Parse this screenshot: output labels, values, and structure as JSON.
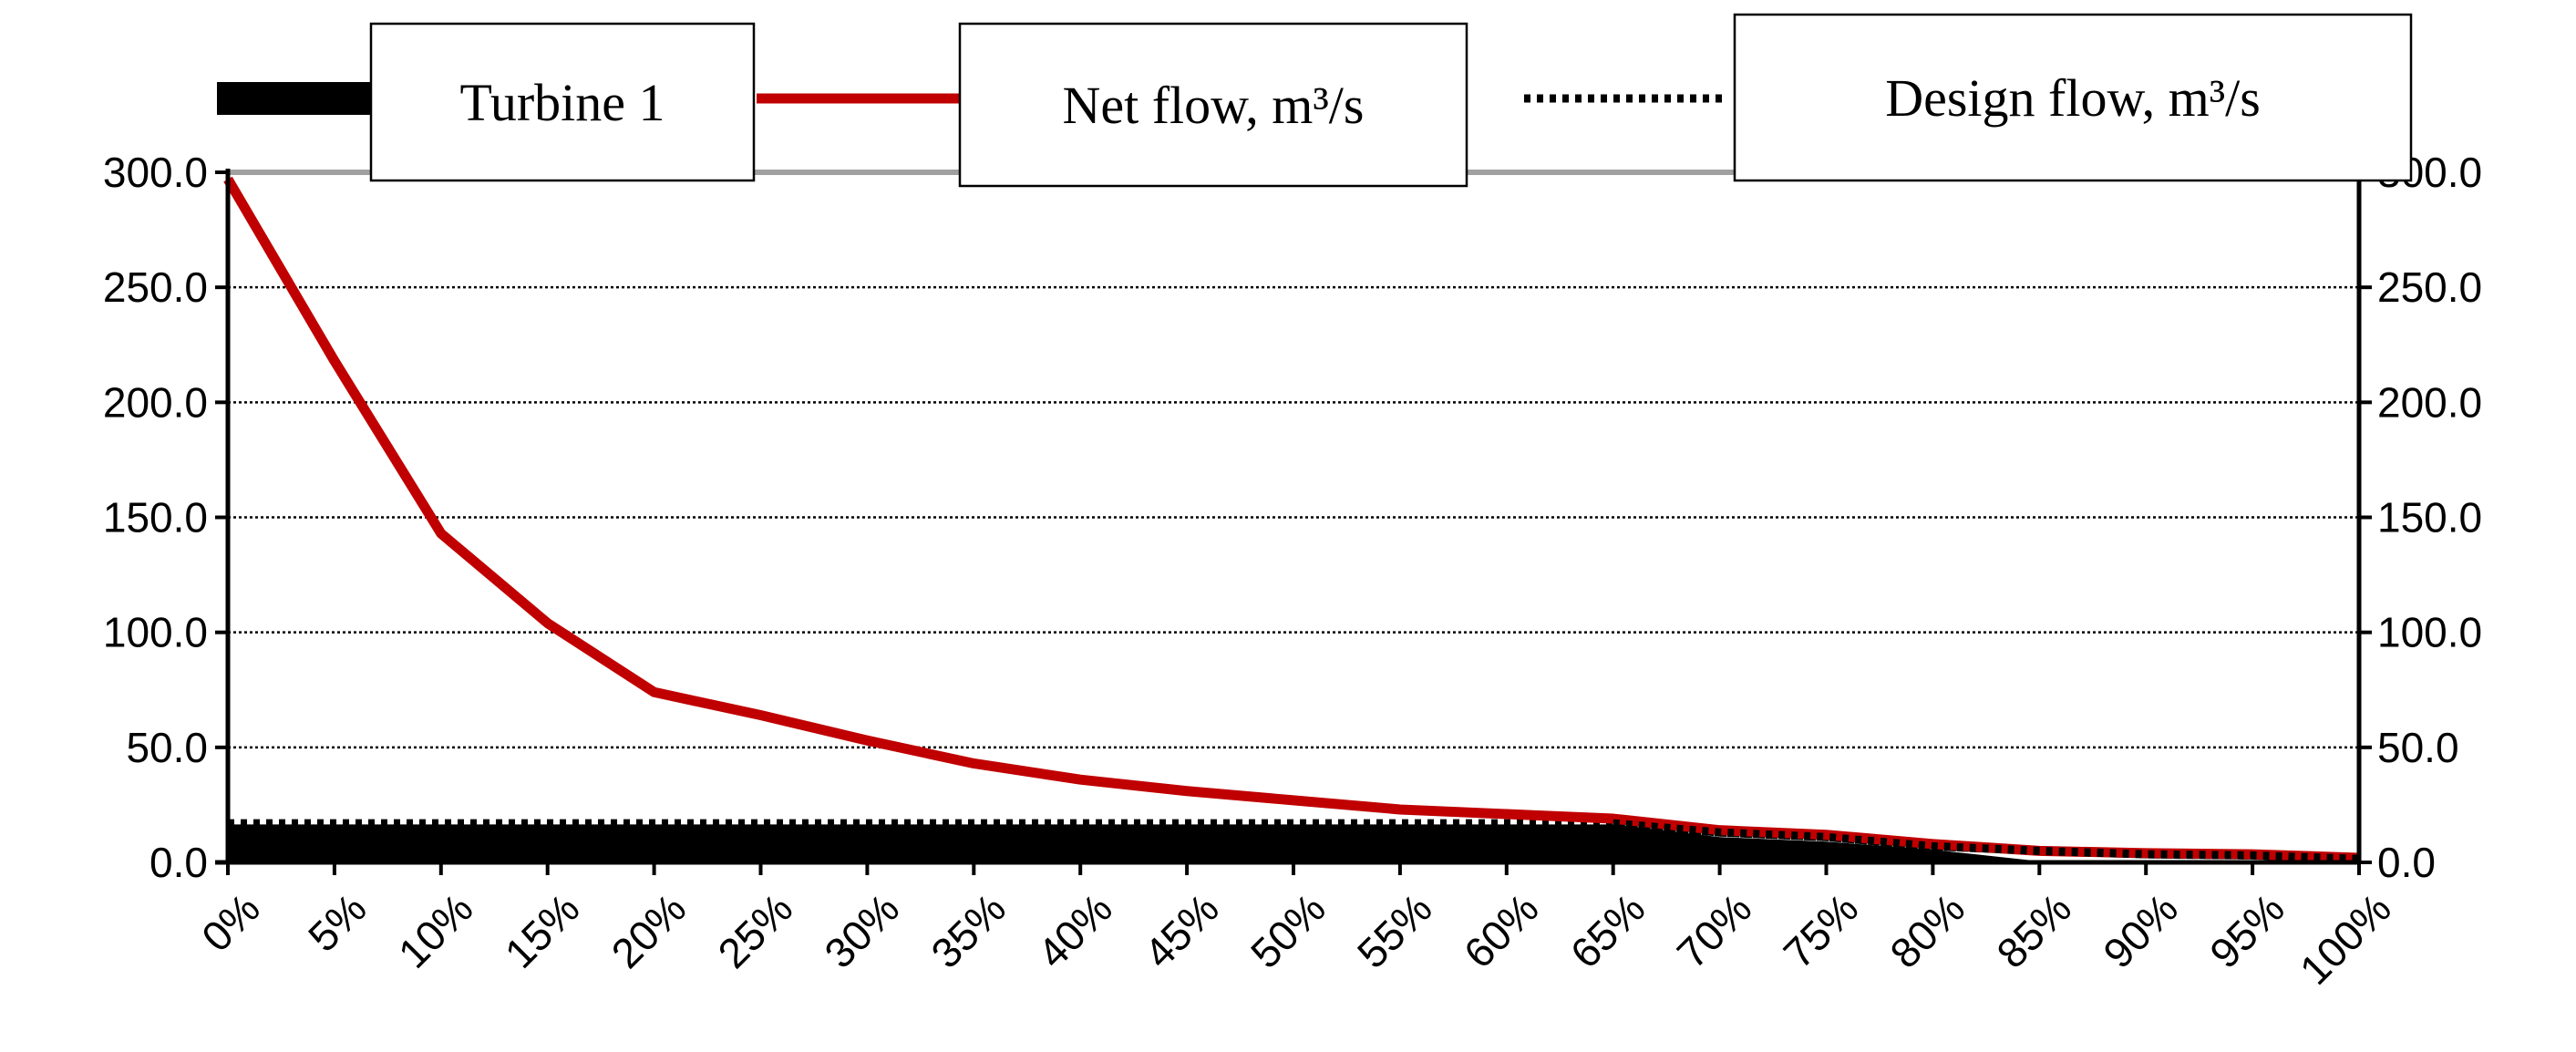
{
  "chart_data": {
    "type": "line",
    "x": [
      "0%",
      "5%",
      "10%",
      "15%",
      "20%",
      "25%",
      "30%",
      "35%",
      "40%",
      "45%",
      "50%",
      "55%",
      "60%",
      "65%",
      "70%",
      "75%",
      "80%",
      "85%",
      "90%",
      "95%",
      "100%"
    ],
    "series": [
      {
        "name": "Turbine 1",
        "type": "area",
        "color": "#000000",
        "values": [
          16.5,
          16.5,
          16.5,
          16.5,
          16.5,
          16.5,
          16.5,
          16.5,
          16.5,
          16.5,
          16.5,
          16.5,
          16.5,
          16.5,
          11.0,
          9.0,
          5.5,
          0.5,
          0.5,
          0.5,
          0.5
        ]
      },
      {
        "name": "Net flow, m³/s",
        "type": "line",
        "color": "#c00000",
        "values": [
          297,
          218,
          143,
          104,
          74,
          64,
          53,
          43,
          36,
          31,
          27,
          23,
          21,
          19,
          14,
          12,
          8,
          5,
          4,
          3.5,
          2
        ]
      },
      {
        "name": "Design flow, m³/s",
        "type": "dotted",
        "color": "#000000",
        "values": [
          17,
          17,
          17,
          17,
          17,
          17,
          17,
          17,
          17,
          17,
          17,
          17,
          17,
          17,
          13,
          11,
          7,
          5,
          3.5,
          3,
          1.5
        ]
      }
    ],
    "yticks": [
      "0.0",
      "50.0",
      "100.0",
      "150.0",
      "200.0",
      "250.0",
      "300.0"
    ],
    "ylim": [
      0,
      300
    ],
    "grid": true,
    "legend": "top"
  }
}
